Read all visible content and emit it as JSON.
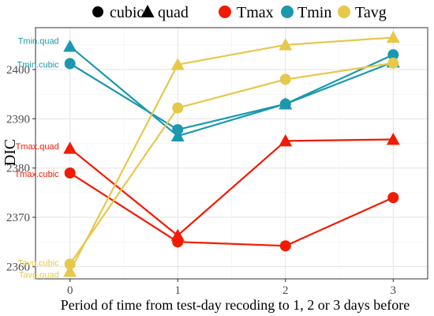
{
  "legend": {
    "shapes": [
      {
        "label": "cubic",
        "marker": "circle"
      },
      {
        "label": "quad",
        "marker": "triangle"
      }
    ],
    "colors": [
      {
        "label": "Tmax",
        "color": "#F21A00"
      },
      {
        "label": "Tmin",
        "color": "#1A98AE"
      },
      {
        "label": "Tavg",
        "color": "#E6C84B"
      }
    ]
  },
  "chart_data": {
    "type": "line",
    "xlabel": "Period of time from test-day recoding to 1, 2 or 3 days before",
    "ylabel": "DIC",
    "x": [
      0,
      1,
      2,
      3
    ],
    "xlim": [
      -0.32,
      3.32
    ],
    "ylim": [
      2357.5,
      2408.5
    ],
    "xticks": [
      0,
      1,
      2,
      3
    ],
    "yticks": [
      2360,
      2370,
      2380,
      2390,
      2400
    ],
    "grid": true,
    "legend_position": "top",
    "series": [
      {
        "name": "Tmax.cubic",
        "variable": "Tmax",
        "model": "cubic",
        "marker": "circle",
        "color": "#F21A00",
        "values": [
          2379,
          2365,
          2364.2,
          2374
        ]
      },
      {
        "name": "Tmax.quad",
        "variable": "Tmax",
        "model": "quad",
        "marker": "triangle",
        "color": "#F21A00",
        "values": [
          2384,
          2366.3,
          2385.5,
          2385.8
        ]
      },
      {
        "name": "Tmin.cubic",
        "variable": "Tmin",
        "model": "cubic",
        "marker": "circle",
        "color": "#1A98AE",
        "values": [
          2401.2,
          2387.8,
          2393,
          2403
        ]
      },
      {
        "name": "Tmin.quad",
        "variable": "Tmin",
        "model": "quad",
        "marker": "triangle",
        "color": "#1A98AE",
        "values": [
          2404.7,
          2386.5,
          2393,
          2401.5
        ]
      },
      {
        "name": "Tavg.cubic",
        "variable": "Tavg",
        "model": "cubic",
        "marker": "circle",
        "color": "#E6C84B",
        "values": [
          2360.5,
          2392.2,
          2398,
          2401.3
        ]
      },
      {
        "name": "Tavg.quad",
        "variable": "Tavg",
        "model": "quad",
        "marker": "triangle",
        "color": "#E6C84B",
        "values": [
          2359,
          2401,
          2405,
          2406.5
        ]
      }
    ],
    "annotations": [
      {
        "text": "Tmin.quad",
        "series": "Tmin.quad",
        "color": "#1A98AE"
      },
      {
        "text": "Tmin.cubic",
        "series": "Tmin.cubic",
        "color": "#1A98AE"
      },
      {
        "text": "Tmax.quad",
        "series": "Tmax.quad",
        "color": "#F21A00"
      },
      {
        "text": "Tmax.cubic",
        "series": "Tmax.cubic",
        "color": "#F21A00"
      },
      {
        "text": "Tavg.cubic",
        "series": "Tavg.cubic",
        "color": "#E6C84B"
      },
      {
        "text": "Tavg.quad",
        "series": "Tavg.quad",
        "color": "#E6C84B"
      }
    ]
  }
}
